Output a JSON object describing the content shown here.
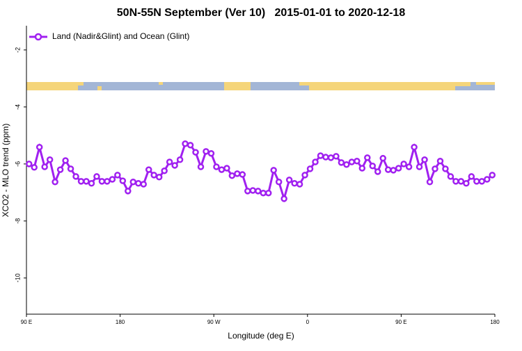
{
  "chart_data": {
    "type": "line",
    "title": "50N-55N September (Ver 10)   2015-01-01 to 2020-12-18",
    "xlabel": "Longitude (deg E)",
    "ylabel": "XCO2 - MLO trend (ppm)",
    "x": [
      92.5,
      97.5,
      102.5,
      107.5,
      112.5,
      117.5,
      122.5,
      127.5,
      132.5,
      137.5,
      142.5,
      147.5,
      152.5,
      157.5,
      162.5,
      167.5,
      172.5,
      177.5,
      182.5,
      187.5,
      192.5,
      197.5,
      202.5,
      207.5,
      212.5,
      217.5,
      222.5,
      227.5,
      232.5,
      237.5,
      242.5,
      247.5,
      252.5,
      257.5,
      262.5,
      267.5,
      272.5,
      277.5,
      282.5,
      287.5,
      292.5,
      297.5,
      302.5,
      307.5,
      312.5,
      317.5,
      322.5,
      327.5,
      332.5,
      337.5,
      342.5,
      347.5,
      352.5,
      357.5,
      362.5,
      367.5,
      372.5,
      377.5,
      382.5,
      387.5,
      392.5,
      397.5,
      402.5,
      407.5,
      412.5,
      417.5,
      422.5,
      427.5,
      432.5,
      437.5,
      442.5,
      447.5,
      452.5,
      457.5,
      462.5,
      467.5,
      472.5,
      477.5,
      482.5,
      487.5,
      492.5,
      497.5,
      502.5,
      507.5,
      512.5,
      517.5,
      522.5,
      527.5,
      532.5,
      537.5
    ],
    "series": [
      {
        "name": "Land (Nadir&Glint) and Ocean (Glint)",
        "color": "#a020f0",
        "values": [
          -6.0,
          -6.12,
          -5.41,
          -6.1,
          -5.85,
          -6.63,
          -6.2,
          -5.88,
          -6.17,
          -6.44,
          -6.61,
          -6.61,
          -6.68,
          -6.44,
          -6.61,
          -6.61,
          -6.54,
          -6.39,
          -6.59,
          -6.95,
          -6.63,
          -6.68,
          -6.71,
          -6.2,
          -6.39,
          -6.46,
          -6.24,
          -5.93,
          -6.05,
          -5.85,
          -5.29,
          -5.34,
          -5.59,
          -6.1,
          -5.56,
          -5.63,
          -6.1,
          -6.2,
          -6.15,
          -6.41,
          -6.34,
          -6.37,
          -6.95,
          -6.93,
          -6.95,
          -7.02,
          -7.02,
          -6.22,
          -6.63,
          -7.22,
          -6.56,
          -6.68,
          -6.71,
          -6.39,
          -6.17,
          -5.93,
          -5.71,
          -5.76,
          -5.78,
          -5.73,
          -5.95,
          -6.02,
          -5.93,
          -5.9,
          -6.15,
          -5.78,
          -6.07,
          -6.27,
          -5.8,
          -6.2,
          -6.22,
          -6.15,
          -6.0,
          -6.1,
          -5.41,
          -6.1,
          -5.85,
          -6.63,
          -6.17,
          -5.9,
          -6.17,
          -6.44,
          -6.61,
          -6.61,
          -6.68,
          -6.44,
          -6.61,
          -6.61,
          -6.54,
          -6.39
        ]
      }
    ],
    "xlim": [
      90,
      540
    ],
    "xticks": [
      {
        "value": 90,
        "label": "90 E"
      },
      180,
      {
        "value": 270,
        "label": "90 W"
      },
      {
        "value": 360,
        "label": "0"
      },
      {
        "value": 450,
        "label": "90 E"
      },
      {
        "value": 540,
        "label": "180"
      }
    ],
    "ylim": [
      -11.27,
      -1.15
    ],
    "yticks": [
      -2,
      -4,
      -6,
      -8,
      -10
    ],
    "legend": "top-left"
  }
}
